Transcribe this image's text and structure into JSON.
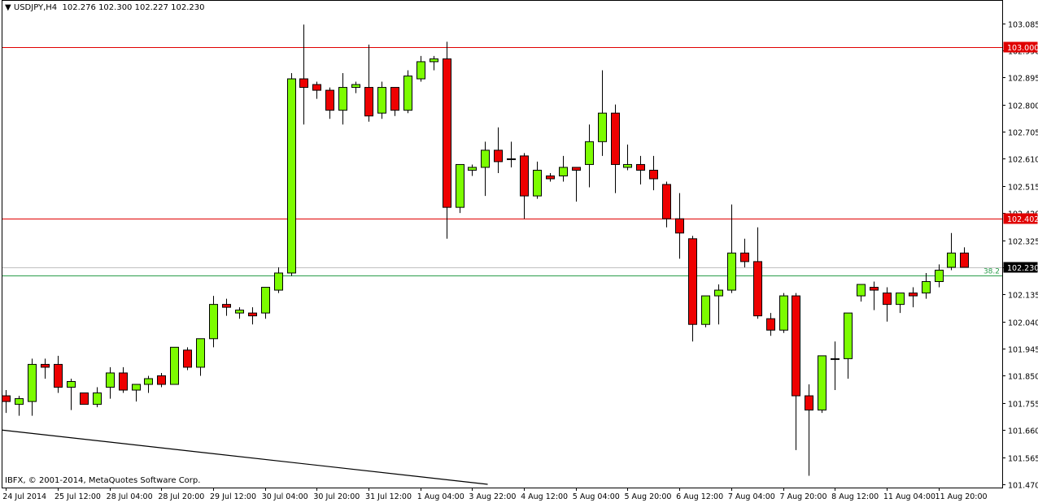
{
  "chart_data": {
    "type": "candlestick",
    "symbol_label": "USDJPY,H4",
    "ohlc_label": "102.276 102.300 102.227 102.230",
    "copyright": "IBFX, © 2001-2014, MetaQuotes Software Corp.",
    "price_axis_ticks": [
      "103.085",
      "102.990",
      "102.895",
      "102.800",
      "102.705",
      "102.610",
      "102.515",
      "102.420",
      "102.325",
      "102.230",
      "102.135",
      "102.040",
      "101.945",
      "101.850",
      "101.755",
      "101.660",
      "101.565",
      "101.470"
    ],
    "time_axis_labels": [
      "24 Jul 2014",
      "25 Jul 12:00",
      "28 Jul 04:00",
      "28 Jul 20:00",
      "29 Jul 12:00",
      "30 Jul 04:00",
      "30 Jul 20:00",
      "31 Jul 12:00",
      "1 Aug 04:00",
      "3 Aug 22:00",
      "4 Aug 12:00",
      "5 Aug 04:00",
      "5 Aug 20:00",
      "6 Aug 12:00",
      "7 Aug 04:00",
      "7 Aug 20:00",
      "8 Aug 12:00",
      "11 Aug 04:00",
      "11 Aug 20:00"
    ],
    "horizontal_levels": [
      {
        "price": 103.0,
        "label": "103.000",
        "color": "#e00000"
      },
      {
        "price": 102.402,
        "label": "102.402",
        "color": "#e00000"
      }
    ],
    "fib_level": {
      "price": 102.2,
      "label": "38.2",
      "color": "#2a9d4a"
    },
    "current_price": {
      "price": 102.23,
      "label": "102.230"
    },
    "trendline": {
      "from": [
        -0.3,
        101.66
      ],
      "to": [
        37.2,
        101.47
      ],
      "color": "#000000"
    },
    "colors": {
      "bull": "#7cfc00",
      "bear": "#ee0000",
      "wick": "#000000",
      "axis": "#000000"
    },
    "candles": [
      [
        101.78,
        101.8,
        101.72,
        101.76
      ],
      [
        101.75,
        101.78,
        101.71,
        101.77
      ],
      [
        101.76,
        101.91,
        101.71,
        101.89
      ],
      [
        101.89,
        101.91,
        101.84,
        101.88
      ],
      [
        101.89,
        101.92,
        101.79,
        101.81
      ],
      [
        101.81,
        101.84,
        101.73,
        101.83
      ],
      [
        101.79,
        101.79,
        101.75,
        101.75
      ],
      [
        101.75,
        101.81,
        101.74,
        101.79
      ],
      [
        101.81,
        101.88,
        101.77,
        101.86
      ],
      [
        101.86,
        101.88,
        101.79,
        101.8
      ],
      [
        101.8,
        101.82,
        101.76,
        101.82
      ],
      [
        101.82,
        101.85,
        101.79,
        101.84
      ],
      [
        101.85,
        101.86,
        101.81,
        101.82
      ],
      [
        101.82,
        101.95,
        101.82,
        101.95
      ],
      [
        101.94,
        101.95,
        101.87,
        101.88
      ],
      [
        101.88,
        101.98,
        101.85,
        101.98
      ],
      [
        101.98,
        102.13,
        101.95,
        102.1
      ],
      [
        102.1,
        102.12,
        102.06,
        102.09
      ],
      [
        102.07,
        102.09,
        102.05,
        102.08
      ],
      [
        102.07,
        102.09,
        102.03,
        102.06
      ],
      [
        102.07,
        102.16,
        102.05,
        102.16
      ],
      [
        102.15,
        102.23,
        102.14,
        102.21
      ],
      [
        102.21,
        102.91,
        102.2,
        102.89
      ],
      [
        102.89,
        103.08,
        102.73,
        102.86
      ],
      [
        102.87,
        102.88,
        102.82,
        102.85
      ],
      [
        102.85,
        102.86,
        102.75,
        102.78
      ],
      [
        102.78,
        102.91,
        102.73,
        102.86
      ],
      [
        102.86,
        102.88,
        102.84,
        102.87
      ],
      [
        102.86,
        103.01,
        102.74,
        102.76
      ],
      [
        102.77,
        102.88,
        102.75,
        102.86
      ],
      [
        102.86,
        102.86,
        102.76,
        102.78
      ],
      [
        102.78,
        102.92,
        102.77,
        102.9
      ],
      [
        102.89,
        102.97,
        102.88,
        102.95
      ],
      [
        102.95,
        102.97,
        102.92,
        102.96
      ],
      [
        102.96,
        103.02,
        102.33,
        102.44
      ],
      [
        102.44,
        102.59,
        102.42,
        102.59
      ],
      [
        102.57,
        102.59,
        102.55,
        102.58
      ],
      [
        102.58,
        102.67,
        102.48,
        102.64
      ],
      [
        102.64,
        102.72,
        102.56,
        102.6
      ],
      [
        102.61,
        102.67,
        102.58,
        102.61
      ],
      [
        102.62,
        102.63,
        102.4,
        102.48
      ],
      [
        102.48,
        102.6,
        102.47,
        102.57
      ],
      [
        102.55,
        102.56,
        102.53,
        102.54
      ],
      [
        102.55,
        102.62,
        102.53,
        102.58
      ],
      [
        102.58,
        102.58,
        102.46,
        102.57
      ],
      [
        102.59,
        102.73,
        102.51,
        102.67
      ],
      [
        102.67,
        102.92,
        102.62,
        102.77
      ],
      [
        102.77,
        102.8,
        102.49,
        102.59
      ],
      [
        102.58,
        102.66,
        102.57,
        102.59
      ],
      [
        102.59,
        102.62,
        102.52,
        102.57
      ],
      [
        102.57,
        102.62,
        102.5,
        102.54
      ],
      [
        102.52,
        102.53,
        102.37,
        102.4
      ],
      [
        102.4,
        102.49,
        102.26,
        102.35
      ],
      [
        102.33,
        102.34,
        101.97,
        102.03
      ],
      [
        102.03,
        102.13,
        102.02,
        102.13
      ],
      [
        102.13,
        102.17,
        102.03,
        102.15
      ],
      [
        102.15,
        102.45,
        102.14,
        102.28
      ],
      [
        102.28,
        102.33,
        102.23,
        102.25
      ],
      [
        102.25,
        102.37,
        102.05,
        102.06
      ],
      [
        102.05,
        102.07,
        101.99,
        102.01
      ],
      [
        102.01,
        102.14,
        102.0,
        102.13
      ],
      [
        102.13,
        102.14,
        101.59,
        101.78
      ],
      [
        101.78,
        101.82,
        101.5,
        101.73
      ],
      [
        101.73,
        101.92,
        101.72,
        101.92
      ],
      [
        101.91,
        101.97,
        101.8,
        101.91
      ],
      [
        101.91,
        102.07,
        101.84,
        102.07
      ],
      [
        102.13,
        102.17,
        102.11,
        102.17
      ],
      [
        102.16,
        102.18,
        102.08,
        102.15
      ],
      [
        102.14,
        102.16,
        102.04,
        102.1
      ],
      [
        102.1,
        102.14,
        102.07,
        102.14
      ],
      [
        102.14,
        102.16,
        102.09,
        102.13
      ],
      [
        102.14,
        102.21,
        102.12,
        102.18
      ],
      [
        102.18,
        102.24,
        102.16,
        102.22
      ],
      [
        102.23,
        102.35,
        102.22,
        102.28
      ],
      [
        102.28,
        102.3,
        102.23,
        102.23
      ]
    ]
  }
}
